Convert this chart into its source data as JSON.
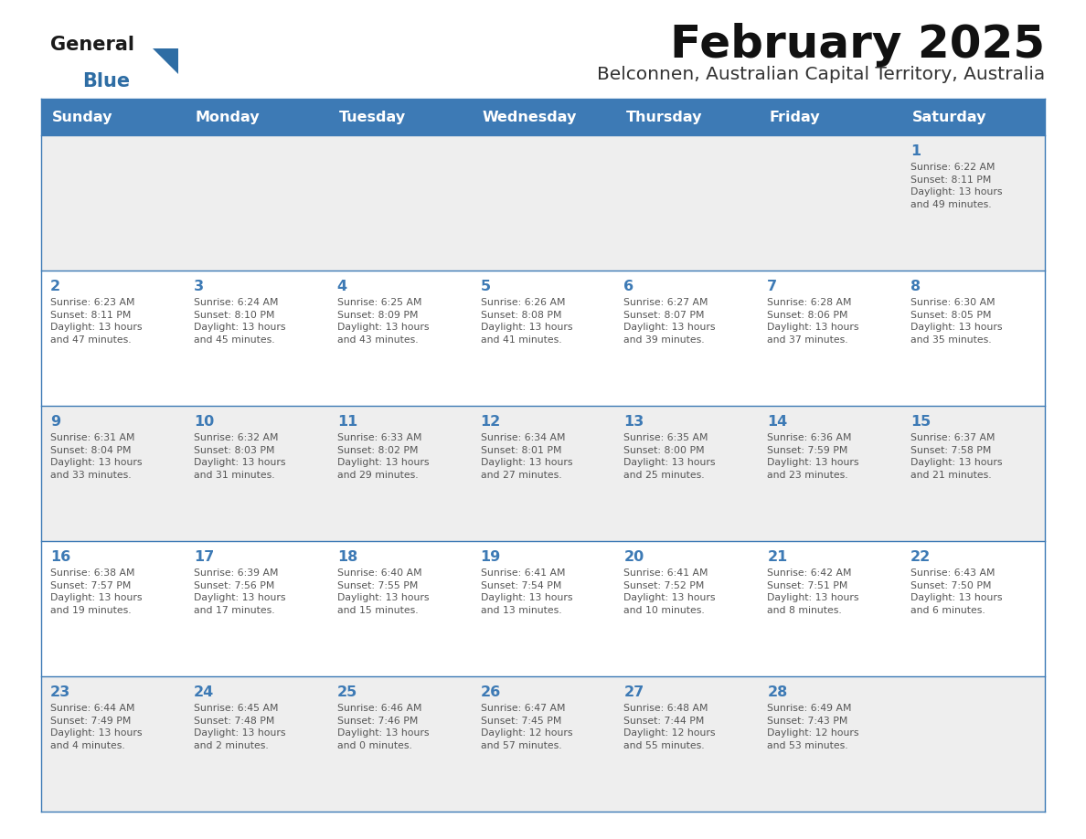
{
  "title": "February 2025",
  "subtitle": "Belconnen, Australian Capital Territory, Australia",
  "header_bg": "#3d7ab5",
  "header_text_color": "#ffffff",
  "header_days": [
    "Sunday",
    "Monday",
    "Tuesday",
    "Wednesday",
    "Thursday",
    "Friday",
    "Saturday"
  ],
  "row_bg_odd": "#eeeeee",
  "row_bg_even": "#ffffff",
  "cell_border_color": "#3d7ab5",
  "day_number_color": "#3d7ab5",
  "info_text_color": "#555555",
  "background_color": "#ffffff",
  "logo_general_color": "#1a1a1a",
  "logo_blue_color": "#2e6da4",
  "weeks": [
    [
      {
        "day": null,
        "info": null
      },
      {
        "day": null,
        "info": null
      },
      {
        "day": null,
        "info": null
      },
      {
        "day": null,
        "info": null
      },
      {
        "day": null,
        "info": null
      },
      {
        "day": null,
        "info": null
      },
      {
        "day": 1,
        "info": "Sunrise: 6:22 AM\nSunset: 8:11 PM\nDaylight: 13 hours\nand 49 minutes."
      }
    ],
    [
      {
        "day": 2,
        "info": "Sunrise: 6:23 AM\nSunset: 8:11 PM\nDaylight: 13 hours\nand 47 minutes."
      },
      {
        "day": 3,
        "info": "Sunrise: 6:24 AM\nSunset: 8:10 PM\nDaylight: 13 hours\nand 45 minutes."
      },
      {
        "day": 4,
        "info": "Sunrise: 6:25 AM\nSunset: 8:09 PM\nDaylight: 13 hours\nand 43 minutes."
      },
      {
        "day": 5,
        "info": "Sunrise: 6:26 AM\nSunset: 8:08 PM\nDaylight: 13 hours\nand 41 minutes."
      },
      {
        "day": 6,
        "info": "Sunrise: 6:27 AM\nSunset: 8:07 PM\nDaylight: 13 hours\nand 39 minutes."
      },
      {
        "day": 7,
        "info": "Sunrise: 6:28 AM\nSunset: 8:06 PM\nDaylight: 13 hours\nand 37 minutes."
      },
      {
        "day": 8,
        "info": "Sunrise: 6:30 AM\nSunset: 8:05 PM\nDaylight: 13 hours\nand 35 minutes."
      }
    ],
    [
      {
        "day": 9,
        "info": "Sunrise: 6:31 AM\nSunset: 8:04 PM\nDaylight: 13 hours\nand 33 minutes."
      },
      {
        "day": 10,
        "info": "Sunrise: 6:32 AM\nSunset: 8:03 PM\nDaylight: 13 hours\nand 31 minutes."
      },
      {
        "day": 11,
        "info": "Sunrise: 6:33 AM\nSunset: 8:02 PM\nDaylight: 13 hours\nand 29 minutes."
      },
      {
        "day": 12,
        "info": "Sunrise: 6:34 AM\nSunset: 8:01 PM\nDaylight: 13 hours\nand 27 minutes."
      },
      {
        "day": 13,
        "info": "Sunrise: 6:35 AM\nSunset: 8:00 PM\nDaylight: 13 hours\nand 25 minutes."
      },
      {
        "day": 14,
        "info": "Sunrise: 6:36 AM\nSunset: 7:59 PM\nDaylight: 13 hours\nand 23 minutes."
      },
      {
        "day": 15,
        "info": "Sunrise: 6:37 AM\nSunset: 7:58 PM\nDaylight: 13 hours\nand 21 minutes."
      }
    ],
    [
      {
        "day": 16,
        "info": "Sunrise: 6:38 AM\nSunset: 7:57 PM\nDaylight: 13 hours\nand 19 minutes."
      },
      {
        "day": 17,
        "info": "Sunrise: 6:39 AM\nSunset: 7:56 PM\nDaylight: 13 hours\nand 17 minutes."
      },
      {
        "day": 18,
        "info": "Sunrise: 6:40 AM\nSunset: 7:55 PM\nDaylight: 13 hours\nand 15 minutes."
      },
      {
        "day": 19,
        "info": "Sunrise: 6:41 AM\nSunset: 7:54 PM\nDaylight: 13 hours\nand 13 minutes."
      },
      {
        "day": 20,
        "info": "Sunrise: 6:41 AM\nSunset: 7:52 PM\nDaylight: 13 hours\nand 10 minutes."
      },
      {
        "day": 21,
        "info": "Sunrise: 6:42 AM\nSunset: 7:51 PM\nDaylight: 13 hours\nand 8 minutes."
      },
      {
        "day": 22,
        "info": "Sunrise: 6:43 AM\nSunset: 7:50 PM\nDaylight: 13 hours\nand 6 minutes."
      }
    ],
    [
      {
        "day": 23,
        "info": "Sunrise: 6:44 AM\nSunset: 7:49 PM\nDaylight: 13 hours\nand 4 minutes."
      },
      {
        "day": 24,
        "info": "Sunrise: 6:45 AM\nSunset: 7:48 PM\nDaylight: 13 hours\nand 2 minutes."
      },
      {
        "day": 25,
        "info": "Sunrise: 6:46 AM\nSunset: 7:46 PM\nDaylight: 13 hours\nand 0 minutes."
      },
      {
        "day": 26,
        "info": "Sunrise: 6:47 AM\nSunset: 7:45 PM\nDaylight: 12 hours\nand 57 minutes."
      },
      {
        "day": 27,
        "info": "Sunrise: 6:48 AM\nSunset: 7:44 PM\nDaylight: 12 hours\nand 55 minutes."
      },
      {
        "day": 28,
        "info": "Sunrise: 6:49 AM\nSunset: 7:43 PM\nDaylight: 12 hours\nand 53 minutes."
      },
      {
        "day": null,
        "info": null
      }
    ]
  ]
}
